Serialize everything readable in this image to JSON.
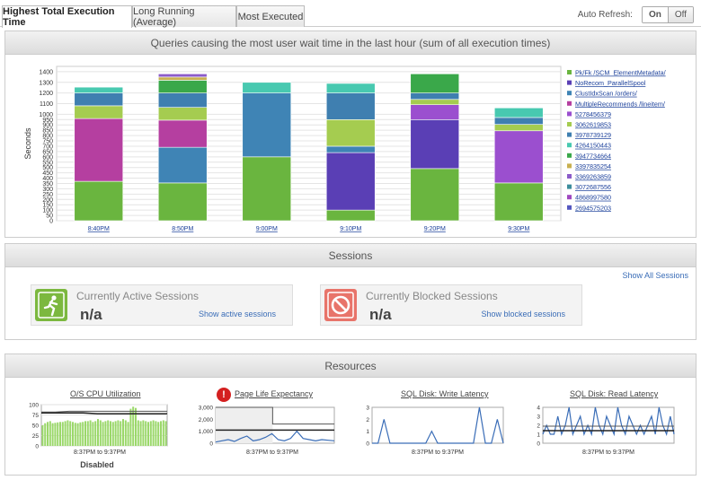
{
  "tabs": [
    {
      "label": "Highest Total Execution Time",
      "active": true
    },
    {
      "label": "Long Running (Average)",
      "active": false
    },
    {
      "label": "Most Executed",
      "active": false
    }
  ],
  "auto_refresh": {
    "label": "Auto Refresh:",
    "on": "On",
    "off": "Off"
  },
  "queries_panel": {
    "title": "Queries causing the most user wait time in the last hour (sum of all execution times)"
  },
  "chart_data": {
    "type": "bar",
    "stacked": true,
    "ylabel": "Seconds",
    "ylim": [
      0,
      1450
    ],
    "yticks": [
      0,
      50,
      100,
      150,
      200,
      250,
      300,
      350,
      400,
      450,
      500,
      550,
      600,
      650,
      700,
      750,
      800,
      850,
      900,
      950,
      1000,
      1100,
      1200,
      1300,
      1400
    ],
    "categories": [
      "8:40PM",
      "8:50PM",
      "9:00PM",
      "9:10PM",
      "9:20PM",
      "9:30PM"
    ],
    "series": [
      {
        "name": "Pk/Fk /SCM_ElementMetadata/",
        "color": "#6ab53f",
        "values": [
          370,
          355,
          600,
          100,
          490,
          355
        ]
      },
      {
        "name": "NoRecom_ParallelSpool",
        "color": "#5a3fb5",
        "values": [
          0,
          0,
          0,
          540,
          460,
          0
        ]
      },
      {
        "name": "ClustIdxScan /orders/",
        "color": "#3f84b5",
        "values": [
          0,
          335,
          600,
          60,
          0,
          0
        ]
      },
      {
        "name": "MultipleRecommends /lineitem/",
        "color": "#b53fa0",
        "values": [
          590,
          255,
          0,
          0,
          0,
          0
        ]
      },
      {
        "name": "5278456379",
        "color": "#9b4fcf",
        "values": [
          0,
          0,
          0,
          0,
          140,
          490
        ]
      },
      {
        "name": "3062619853",
        "color": "#a5cc50",
        "values": [
          120,
          120,
          0,
          250,
          50,
          60
        ]
      },
      {
        "name": "3978739129",
        "color": "#3f7fb0",
        "values": [
          120,
          135,
          0,
          250,
          60,
          65
        ]
      },
      {
        "name": "4264150443",
        "color": "#48c9b0",
        "values": [
          55,
          0,
          100,
          90,
          0,
          90
        ]
      },
      {
        "name": "3947734664",
        "color": "#3aa84a",
        "values": [
          0,
          120,
          0,
          0,
          180,
          0
        ]
      },
      {
        "name": "3397835254",
        "color": "#c8b050",
        "values": [
          0,
          30,
          0,
          0,
          0,
          0
        ]
      },
      {
        "name": "3369263859",
        "color": "#8c5cc9",
        "values": [
          0,
          30,
          0,
          0,
          0,
          0
        ]
      },
      {
        "name": "3072687556",
        "color": "#3c8d9c",
        "values": [
          0,
          0,
          0,
          0,
          0,
          0
        ]
      },
      {
        "name": "4868997580",
        "color": "#a048c0",
        "values": [
          0,
          0,
          0,
          0,
          0,
          0
        ]
      },
      {
        "name": "2694575203",
        "color": "#5558c0",
        "values": [
          0,
          0,
          0,
          0,
          0,
          0
        ]
      }
    ]
  },
  "sessions": {
    "title": "Sessions",
    "show_all": "Show All Sessions",
    "active": {
      "title": "Currently Active Sessions",
      "value": "n/a",
      "link": "Show active sessions",
      "color": "#7cb83f"
    },
    "blocked": {
      "title": "Currently Blocked Sessions",
      "value": "n/a",
      "link": "Show blocked sessions",
      "color": "#e8746a"
    }
  },
  "resources": {
    "title": "Resources",
    "cpu": {
      "title": "O/S CPU Utilization",
      "range": "8:37PM to 9:37PM",
      "yticks": [
        "0",
        "25",
        "50",
        "75",
        "100"
      ],
      "status": "Disabled",
      "bar_values": [
        50,
        55,
        58,
        60,
        55,
        56,
        57,
        58,
        58,
        60,
        62,
        60,
        58,
        56,
        55,
        57,
        58,
        60,
        60,
        62,
        58,
        60,
        65,
        62,
        58,
        60,
        62,
        60,
        58,
        60,
        62,
        60,
        65,
        62,
        58,
        90,
        95,
        92,
        62,
        60,
        62,
        60,
        58,
        60,
        62,
        60,
        58,
        60,
        62,
        60
      ],
      "avg_line": [
        80,
        80,
        80,
        80,
        78,
        78,
        78,
        78,
        78,
        78
      ],
      "max_line": [
        82,
        82,
        84,
        84,
        84,
        84,
        84,
        84,
        84,
        84
      ]
    },
    "ple": {
      "title": "Page Life Expectancy",
      "range": "8:37PM to 9:37PM",
      "yticks": [
        "0",
        "1,000",
        "2,000",
        "3,000"
      ],
      "alert": true,
      "threshold_high": 3000,
      "threshold_step": 1600,
      "baseline": 1100,
      "series": [
        100,
        200,
        300,
        150,
        400,
        600,
        200,
        300,
        500,
        800,
        300,
        200,
        400,
        1000,
        400,
        300,
        200,
        300,
        250,
        200
      ]
    },
    "write": {
      "title": "SQL Disk: Write Latency",
      "range": "8:37PM to 9:37PM",
      "yticks": [
        "0",
        "1",
        "2",
        "3"
      ],
      "series": [
        0,
        0,
        2,
        0,
        0,
        0,
        0,
        0,
        0,
        0,
        1,
        0,
        0,
        0,
        0,
        0,
        0,
        0,
        3,
        0,
        0,
        2,
        0
      ]
    },
    "read": {
      "title": "SQL Disk: Read Latency",
      "range": "8:37PM to 9:37PM",
      "yticks": [
        "0",
        "1",
        "2",
        "3",
        "4"
      ],
      "series": [
        1,
        2,
        1,
        1,
        3,
        1,
        2,
        4,
        1,
        2,
        3,
        1,
        2,
        1,
        4,
        2,
        1,
        3,
        2,
        1,
        4,
        2,
        1,
        3,
        2,
        1,
        2,
        1,
        2,
        3,
        1,
        4,
        2,
        1,
        3,
        1
      ]
    }
  },
  "colors": {
    "link": "#3a6db7",
    "gridline": "#e4e4e4"
  }
}
